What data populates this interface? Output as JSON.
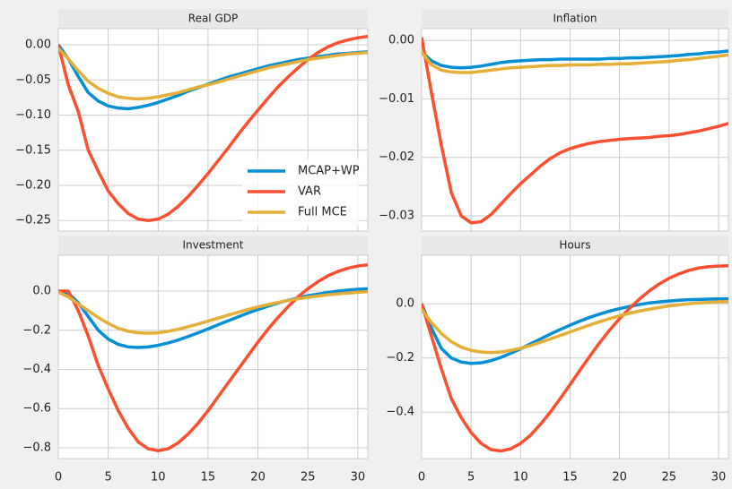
{
  "chart_data": [
    {
      "type": "line",
      "title": "Real GDP",
      "x": [
        0,
        1,
        2,
        3,
        4,
        5,
        6,
        7,
        8,
        9,
        10,
        11,
        12,
        13,
        14,
        15,
        16,
        17,
        18,
        19,
        20,
        21,
        22,
        23,
        24,
        25,
        26,
        27,
        28,
        29,
        30,
        31
      ],
      "series": [
        {
          "name": "MCAP+WP",
          "color": "#008fd5",
          "values": [
            0.0,
            -0.02,
            -0.045,
            -0.068,
            -0.08,
            -0.087,
            -0.09,
            -0.091,
            -0.089,
            -0.086,
            -0.082,
            -0.077,
            -0.072,
            -0.066,
            -0.061,
            -0.056,
            -0.051,
            -0.046,
            -0.042,
            -0.038,
            -0.034,
            -0.03,
            -0.027,
            -0.024,
            -0.021,
            -0.019,
            -0.017,
            -0.015,
            -0.013,
            -0.012,
            -0.011,
            -0.01
          ]
        },
        {
          "name": "VAR",
          "color": "#fc4f30",
          "values": [
            0.0,
            -0.057,
            -0.095,
            -0.15,
            -0.18,
            -0.208,
            -0.226,
            -0.24,
            -0.248,
            -0.25,
            -0.248,
            -0.241,
            -0.23,
            -0.216,
            -0.2,
            -0.183,
            -0.165,
            -0.147,
            -0.128,
            -0.11,
            -0.093,
            -0.076,
            -0.06,
            -0.046,
            -0.033,
            -0.021,
            -0.011,
            -0.003,
            0.003,
            0.007,
            0.01,
            0.012
          ]
        },
        {
          "name": "Full MCE",
          "color": "#e5ae38",
          "values": [
            -0.005,
            -0.02,
            -0.037,
            -0.052,
            -0.062,
            -0.069,
            -0.074,
            -0.076,
            -0.077,
            -0.076,
            -0.074,
            -0.071,
            -0.068,
            -0.064,
            -0.06,
            -0.057,
            -0.053,
            -0.049,
            -0.045,
            -0.041,
            -0.037,
            -0.033,
            -0.03,
            -0.027,
            -0.024,
            -0.021,
            -0.019,
            -0.017,
            -0.015,
            -0.013,
            -0.012,
            -0.011
          ]
        }
      ],
      "xlim": [
        0,
        31
      ],
      "xticks": [
        0,
        5,
        10,
        15,
        20,
        25,
        30
      ],
      "ylim": [
        -0.265,
        0.023
      ],
      "yticks": [
        {
          "value": 0,
          "label": "0.00"
        },
        {
          "value": -0.05,
          "label": "−0.05"
        },
        {
          "value": -0.1,
          "label": "−0.10"
        },
        {
          "value": -0.15,
          "label": "−0.15"
        },
        {
          "value": -0.2,
          "label": "−0.20"
        },
        {
          "value": -0.25,
          "label": "−0.25"
        }
      ],
      "grid": true,
      "legend": "lower right"
    },
    {
      "type": "line",
      "title": "Inflation",
      "x": [
        0,
        1,
        2,
        3,
        4,
        5,
        6,
        7,
        8,
        9,
        10,
        11,
        12,
        13,
        14,
        15,
        16,
        17,
        18,
        19,
        20,
        21,
        22,
        23,
        24,
        25,
        26,
        27,
        28,
        29,
        30,
        31
      ],
      "series": [
        {
          "color": "#008fd5",
          "values": [
            -0.002,
            -0.0035,
            -0.0043,
            -0.0046,
            -0.0047,
            -0.0046,
            -0.0044,
            -0.0041,
            -0.0038,
            -0.0036,
            -0.0035,
            -0.0034,
            -0.0033,
            -0.0033,
            -0.0032,
            -0.0032,
            -0.0032,
            -0.0032,
            -0.0032,
            -0.0031,
            -0.0031,
            -0.003,
            -0.003,
            -0.0029,
            -0.0028,
            -0.0027,
            -0.0026,
            -0.0024,
            -0.0023,
            -0.0021,
            -0.002,
            -0.0018
          ]
        },
        {
          "color": "#fc4f30",
          "values": [
            0.0005,
            -0.009,
            -0.018,
            -0.026,
            -0.03,
            -0.0312,
            -0.031,
            -0.0298,
            -0.028,
            -0.0262,
            -0.0245,
            -0.023,
            -0.0215,
            -0.0202,
            -0.0192,
            -0.0185,
            -0.018,
            -0.0176,
            -0.0173,
            -0.0171,
            -0.0169,
            -0.0168,
            -0.0167,
            -0.0166,
            -0.0164,
            -0.0163,
            -0.0161,
            -0.0158,
            -0.0155,
            -0.0151,
            -0.0147,
            -0.0142
          ]
        },
        {
          "color": "#e5ae38",
          "values": [
            -0.002,
            -0.0042,
            -0.0051,
            -0.0054,
            -0.0055,
            -0.0055,
            -0.0053,
            -0.0051,
            -0.0049,
            -0.0047,
            -0.0046,
            -0.0045,
            -0.0044,
            -0.0043,
            -0.0043,
            -0.0042,
            -0.0042,
            -0.0042,
            -0.0041,
            -0.0041,
            -0.004,
            -0.004,
            -0.0039,
            -0.0038,
            -0.0037,
            -0.0036,
            -0.0034,
            -0.0033,
            -0.0031,
            -0.0029,
            -0.0027,
            -0.0025
          ]
        }
      ],
      "xlim": [
        0,
        31
      ],
      "xticks": [
        0,
        5,
        10,
        15,
        20,
        25,
        30
      ],
      "ylim": [
        -0.0326,
        0.002
      ],
      "yticks": [
        {
          "value": 0,
          "label": "0.00"
        },
        {
          "value": -0.01,
          "label": "−0.01"
        },
        {
          "value": -0.02,
          "label": "−0.02"
        },
        {
          "value": -0.03,
          "label": "−0.03"
        }
      ],
      "grid": true
    },
    {
      "type": "line",
      "title": "Investment",
      "x": [
        0,
        1,
        2,
        3,
        4,
        5,
        6,
        7,
        8,
        9,
        10,
        11,
        12,
        13,
        14,
        15,
        16,
        17,
        18,
        19,
        20,
        21,
        22,
        23,
        24,
        25,
        26,
        27,
        28,
        29,
        30,
        31
      ],
      "series": [
        {
          "color": "#008fd5",
          "values": [
            0.0,
            -0.01,
            -0.06,
            -0.13,
            -0.2,
            -0.245,
            -0.272,
            -0.285,
            -0.288,
            -0.285,
            -0.277,
            -0.265,
            -0.25,
            -0.232,
            -0.213,
            -0.193,
            -0.172,
            -0.152,
            -0.132,
            -0.112,
            -0.094,
            -0.077,
            -0.061,
            -0.047,
            -0.035,
            -0.024,
            -0.015,
            -0.007,
            0.0,
            0.005,
            0.009,
            0.012
          ]
        },
        {
          "color": "#fc4f30",
          "values": [
            0.0,
            0.0,
            -0.1,
            -0.23,
            -0.38,
            -0.5,
            -0.61,
            -0.7,
            -0.77,
            -0.805,
            -0.815,
            -0.805,
            -0.775,
            -0.73,
            -0.675,
            -0.61,
            -0.54,
            -0.47,
            -0.4,
            -0.33,
            -0.26,
            -0.195,
            -0.135,
            -0.08,
            -0.03,
            0.012,
            0.048,
            0.078,
            0.1,
            0.117,
            0.128,
            0.134
          ]
        },
        {
          "color": "#e5ae38",
          "values": [
            -0.005,
            -0.03,
            -0.065,
            -0.1,
            -0.135,
            -0.165,
            -0.19,
            -0.205,
            -0.213,
            -0.215,
            -0.213,
            -0.205,
            -0.195,
            -0.182,
            -0.168,
            -0.153,
            -0.138,
            -0.123,
            -0.108,
            -0.094,
            -0.081,
            -0.069,
            -0.058,
            -0.048,
            -0.039,
            -0.032,
            -0.025,
            -0.019,
            -0.014,
            -0.01,
            -0.006,
            -0.003
          ]
        }
      ],
      "xlim": [
        0,
        31
      ],
      "xticks": [
        0,
        5,
        10,
        15,
        20,
        25,
        30
      ],
      "ylim": [
        -0.855,
        0.183
      ],
      "yticks": [
        {
          "value": 0,
          "label": "0.0"
        },
        {
          "value": -0.2,
          "label": "−0.2"
        },
        {
          "value": -0.4,
          "label": "−0.4"
        },
        {
          "value": -0.6,
          "label": "−0.6"
        },
        {
          "value": -0.8,
          "label": "−0.8"
        }
      ],
      "grid": true
    },
    {
      "type": "line",
      "title": "Hours",
      "x": [
        0,
        1,
        2,
        3,
        4,
        5,
        6,
        7,
        8,
        9,
        10,
        11,
        12,
        13,
        14,
        15,
        16,
        17,
        18,
        19,
        20,
        21,
        22,
        23,
        24,
        25,
        26,
        27,
        28,
        29,
        30,
        31
      ],
      "series": [
        {
          "color": "#008fd5",
          "values": [
            0.0,
            -0.09,
            -0.165,
            -0.2,
            -0.215,
            -0.22,
            -0.218,
            -0.21,
            -0.198,
            -0.183,
            -0.166,
            -0.148,
            -0.13,
            -0.112,
            -0.095,
            -0.079,
            -0.064,
            -0.05,
            -0.038,
            -0.027,
            -0.018,
            -0.01,
            -0.003,
            0.003,
            0.007,
            0.01,
            0.013,
            0.015,
            0.016,
            0.017,
            0.018,
            0.018
          ]
        },
        {
          "color": "#fc4f30",
          "values": [
            0.0,
            -0.12,
            -0.24,
            -0.35,
            -0.42,
            -0.475,
            -0.515,
            -0.538,
            -0.543,
            -0.535,
            -0.515,
            -0.485,
            -0.445,
            -0.4,
            -0.35,
            -0.298,
            -0.245,
            -0.193,
            -0.143,
            -0.097,
            -0.055,
            -0.017,
            0.017,
            0.047,
            0.073,
            0.094,
            0.11,
            0.123,
            0.132,
            0.137,
            0.139,
            0.14
          ]
        },
        {
          "color": "#e5ae38",
          "values": [
            -0.02,
            -0.07,
            -0.11,
            -0.14,
            -0.16,
            -0.172,
            -0.178,
            -0.18,
            -0.178,
            -0.172,
            -0.164,
            -0.154,
            -0.142,
            -0.13,
            -0.117,
            -0.104,
            -0.091,
            -0.078,
            -0.066,
            -0.055,
            -0.044,
            -0.035,
            -0.027,
            -0.02,
            -0.014,
            -0.008,
            -0.004,
            0.0,
            0.003,
            0.005,
            0.007,
            0.008
          ]
        }
      ],
      "xlim": [
        0,
        31
      ],
      "xticks": [
        0,
        5,
        10,
        15,
        20,
        25,
        30
      ],
      "ylim": [
        -0.571,
        0.179
      ],
      "yticks": [
        {
          "value": 0,
          "label": "0.0"
        },
        {
          "value": -0.2,
          "label": "−0.2"
        },
        {
          "value": -0.4,
          "label": "−0.4"
        }
      ],
      "grid": true
    }
  ]
}
